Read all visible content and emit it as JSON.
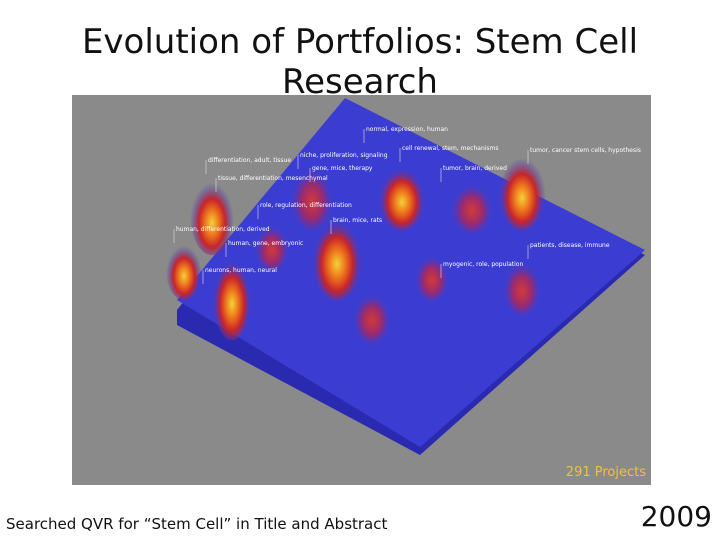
{
  "title": "Evolution of Portfolios: Stem Cell Research",
  "image": {
    "labels": [
      "normal, expression, human",
      "niche, proliferation, signaling",
      "cell renewal, stem, mechanisms",
      "tumor, cancer stem cells, hypothesis",
      "differentiation, adult, tissue",
      "gene, mice, therapy",
      "tumor, brain, derived",
      "tissue, differentiation, mesenchymal",
      "role, regulation, differentiation",
      "brain, mice, rats",
      "human, differentiation, derived",
      "human, gene, embryonic",
      "patients, disease, immune",
      "myogenic, role, population",
      "neurons, human, neural"
    ],
    "caption": "291 Projects"
  },
  "footer": {
    "note": "Searched QVR for “Stem Cell” in Title and Abstract",
    "year": "2009"
  }
}
